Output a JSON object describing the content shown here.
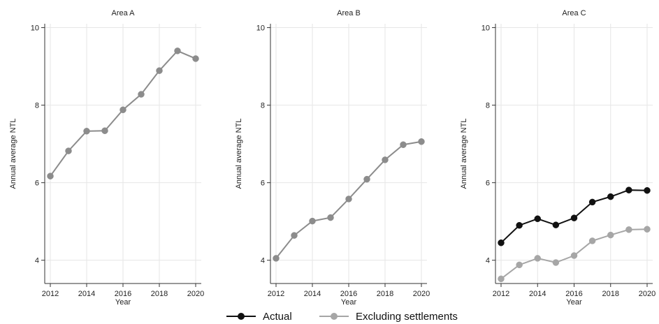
{
  "chart_data": [
    {
      "type": "line",
      "title": "Area A",
      "xlabel": "Year",
      "ylabel": "Annual average NTL",
      "xlim": [
        2012,
        2020
      ],
      "ylim": [
        3.4,
        10.1
      ],
      "xticks": [
        2012,
        2014,
        2016,
        2018,
        2020
      ],
      "yticks": [
        4,
        6,
        8,
        10
      ],
      "grid": true,
      "x": [
        2012,
        2013,
        2014,
        2015,
        2016,
        2017,
        2018,
        2019,
        2020
      ],
      "series": [
        {
          "color": "#8c8c8c",
          "values": [
            6.17,
            6.82,
            7.33,
            7.34,
            7.88,
            8.28,
            8.89,
            9.4,
            9.2
          ]
        }
      ]
    },
    {
      "type": "line",
      "title": "Area B",
      "xlabel": "Year",
      "ylabel": "Annual average NTL",
      "xlim": [
        2012,
        2020
      ],
      "ylim": [
        3.4,
        10.1
      ],
      "xticks": [
        2012,
        2014,
        2016,
        2018,
        2020
      ],
      "yticks": [
        4,
        6,
        8,
        10
      ],
      "grid": true,
      "x": [
        2012,
        2013,
        2014,
        2015,
        2016,
        2017,
        2018,
        2019,
        2020
      ],
      "series": [
        {
          "color": "#8c8c8c",
          "values": [
            4.05,
            4.64,
            5.01,
            5.1,
            5.58,
            6.09,
            6.59,
            6.98,
            7.06
          ]
        }
      ]
    },
    {
      "type": "line",
      "title": "Area C",
      "xlabel": "Year",
      "ylabel": "Annual average NTL",
      "xlim": [
        2012,
        2020
      ],
      "ylim": [
        3.4,
        10.1
      ],
      "xticks": [
        2012,
        2014,
        2016,
        2018,
        2020
      ],
      "yticks": [
        4,
        6,
        8,
        10
      ],
      "grid": true,
      "x": [
        2012,
        2013,
        2014,
        2015,
        2016,
        2017,
        2018,
        2019,
        2020
      ],
      "series": [
        {
          "name": "Actual",
          "color": "#111111",
          "values": [
            4.45,
            4.9,
            5.07,
            4.91,
            5.09,
            5.5,
            5.64,
            5.81,
            5.8
          ]
        },
        {
          "name": "Excluding settlements",
          "color": "#a6a6a6",
          "values": [
            3.52,
            3.88,
            4.05,
            3.94,
            4.12,
            4.5,
            4.65,
            4.79,
            4.8
          ]
        }
      ]
    }
  ],
  "legend": {
    "placement": "bottom-center",
    "items": [
      {
        "label": "Actual",
        "color": "#111111"
      },
      {
        "label": "Excluding settlements",
        "color": "#a6a6a6"
      }
    ]
  }
}
